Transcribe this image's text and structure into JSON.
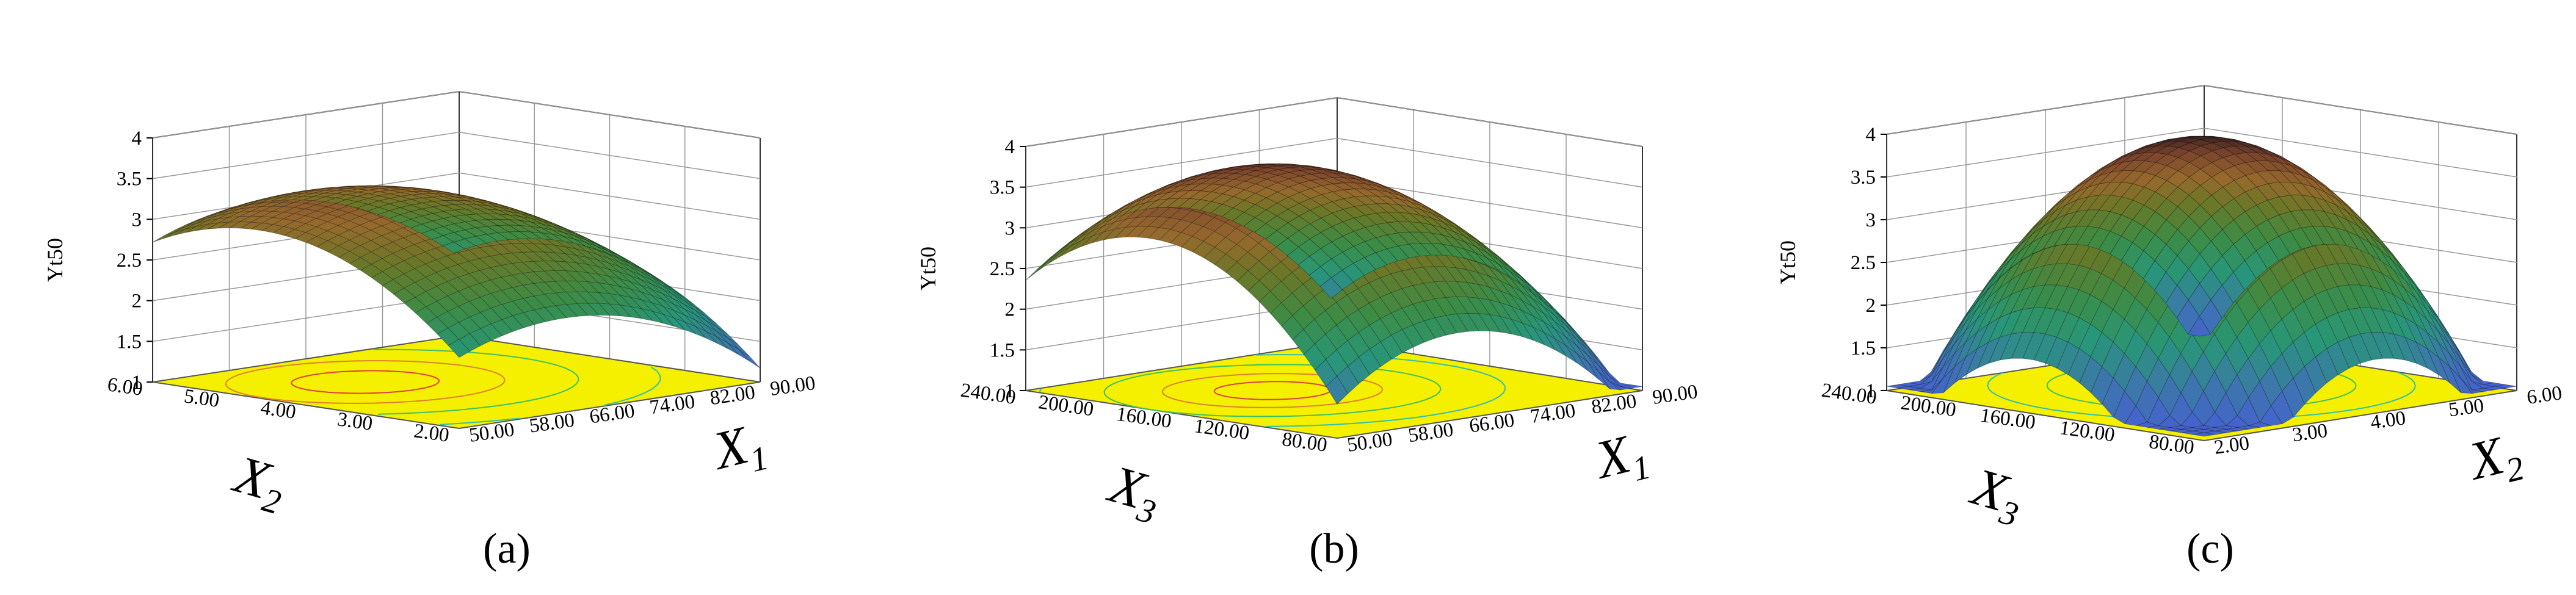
{
  "chart_data": [
    {
      "type": "surface3d",
      "panel_label": "(a)",
      "zlabel": "Yt50",
      "zticks": [
        "1",
        "1.5",
        "2",
        "2.5",
        "3",
        "3.5",
        "4"
      ],
      "zlim": [
        1,
        4
      ],
      "x_axis": {
        "name": "X",
        "sub": "1",
        "ticks": [
          "50.00",
          "58.00",
          "66.00",
          "74.00",
          "82.00",
          "90.00"
        ],
        "range": [
          50,
          90
        ]
      },
      "y_axis": {
        "name": "X",
        "sub": "2",
        "ticks": [
          "2.00",
          "3.00",
          "4.00",
          "5.00",
          "6.00"
        ],
        "range": [
          2,
          6
        ]
      },
      "surface": {
        "center": [
          0.35,
          0.65
        ],
        "peak": 3.35,
        "curvature_x": 1.0,
        "curvature_y": 1.1,
        "min_corner_value": 1.25
      }
    },
    {
      "type": "surface3d",
      "panel_label": "(b)",
      "zlabel": "Yt50",
      "zticks": [
        "1",
        "1.5",
        "2",
        "2.5",
        "3",
        "3.5",
        "4"
      ],
      "zlim": [
        1,
        4
      ],
      "x_axis": {
        "name": "X",
        "sub": "1",
        "ticks": [
          "50.00",
          "58.00",
          "66.00",
          "74.00",
          "82.00",
          "90.00"
        ],
        "range": [
          50,
          90
        ]
      },
      "y_axis": {
        "name": "X",
        "sub": "3",
        "ticks": [
          "80.00",
          "120.00",
          "160.00",
          "200.00",
          "240.00"
        ],
        "range": [
          80,
          240
        ]
      },
      "surface": {
        "center": [
          0.4,
          0.6
        ],
        "peak": 3.75,
        "curvature_x": 1.3,
        "curvature_y": 1.4,
        "min_corner_value": 1.6
      }
    },
    {
      "type": "surface3d",
      "panel_label": "(c)",
      "zlabel": "Yt50",
      "zticks": [
        "1",
        "1.5",
        "2",
        "2.5",
        "3",
        "3.5",
        "4"
      ],
      "zlim": [
        1,
        4
      ],
      "x_axis": {
        "name": "X",
        "sub": "2",
        "ticks": [
          "2.00",
          "3.00",
          "4.00",
          "5.00",
          "6.00"
        ],
        "range": [
          2,
          6
        ]
      },
      "y_axis": {
        "name": "X",
        "sub": "3",
        "ticks": [
          "80.00",
          "120.00",
          "160.00",
          "200.00",
          "240.00"
        ],
        "range": [
          80,
          240
        ]
      },
      "surface": {
        "center": [
          0.55,
          0.55
        ],
        "peak": 3.9,
        "curvature_x": 1.5,
        "curvature_y": 1.5,
        "min_corner_value": 0.9
      }
    }
  ]
}
